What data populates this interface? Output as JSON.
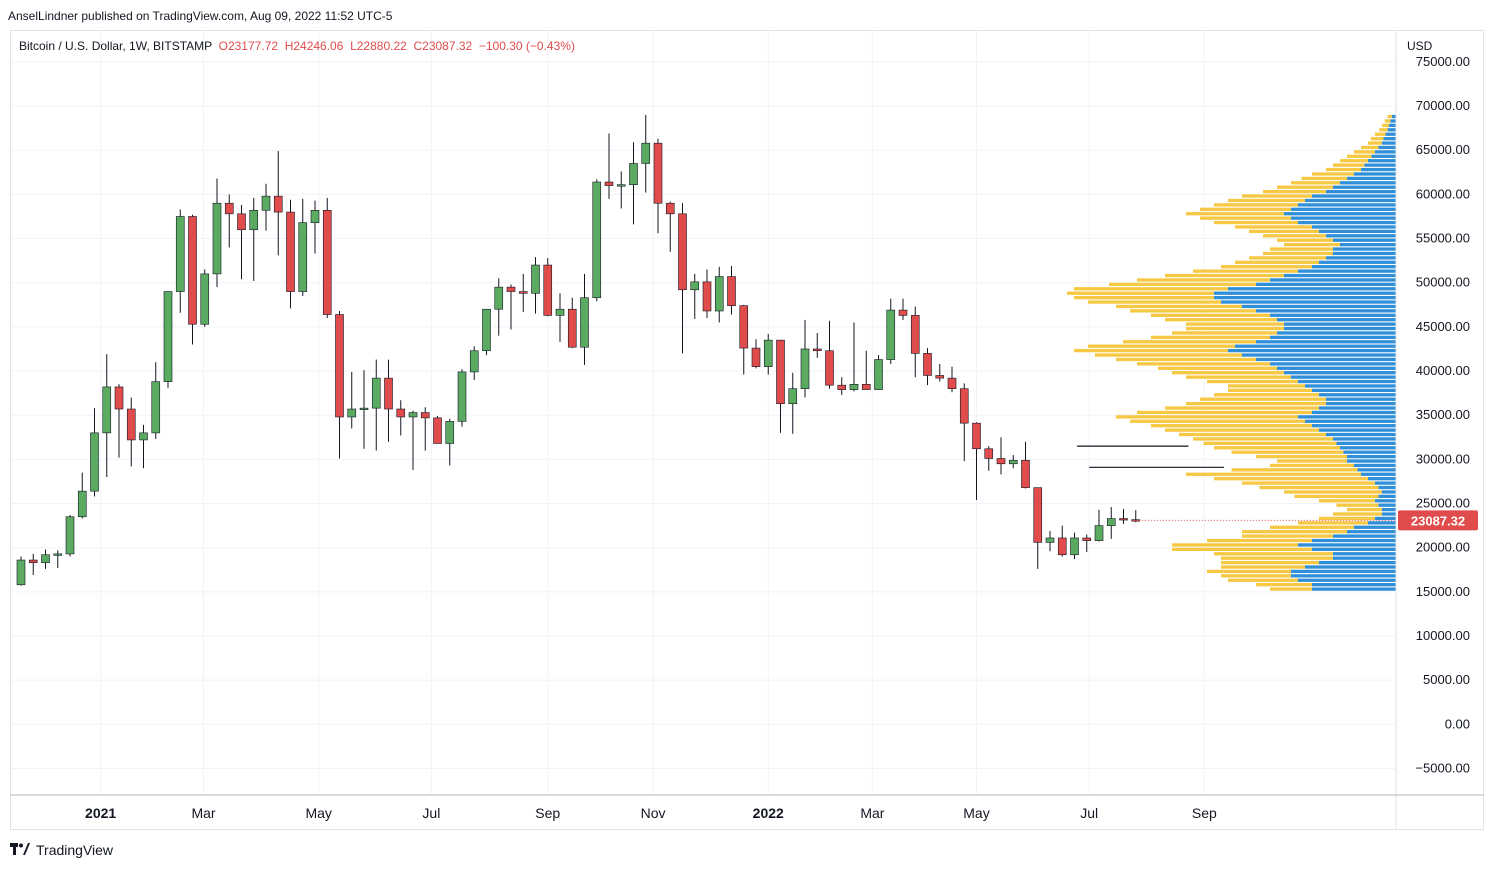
{
  "header": {
    "publisher_line": "AnselLindner published on TradingView.com, Aug 09, 2022 11:52 UTC-5"
  },
  "footer": {
    "brand": "TradingView",
    "logo_icon": "tradingview-logo-icon"
  },
  "chart_data": {
    "type": "candlestick",
    "legend": {
      "symbol": "Bitcoin / U.S. Dollar, 1W, BITSTAMP",
      "open": "O23177.72",
      "high": "H24246.06",
      "low": "L22880.22",
      "close": "C23087.32",
      "change": "−100.30 (−0.43%)"
    },
    "currency_label": "USD",
    "last_price_label": "23087.32",
    "y_ticks": [
      "75000.00",
      "70000.00",
      "65000.00",
      "60000.00",
      "55000.00",
      "50000.00",
      "45000.00",
      "40000.00",
      "35000.00",
      "30000.00",
      "25000.00",
      "20000.00",
      "15000.00",
      "10000.00",
      "5000.00",
      "0.00",
      "−5000.00"
    ],
    "y_tick_values": [
      75000,
      70000,
      65000,
      60000,
      55000,
      50000,
      45000,
      40000,
      35000,
      30000,
      25000,
      20000,
      15000,
      10000,
      5000,
      0,
      -5000
    ],
    "ylim": [
      -8000,
      78500
    ],
    "x_ticks": [
      {
        "label": "2021",
        "bar": 6.5,
        "bold": true
      },
      {
        "label": "Mar",
        "bar": 14.9
      },
      {
        "label": "May",
        "bar": 24.3
      },
      {
        "label": "Jul",
        "bar": 33.5
      },
      {
        "label": "Sep",
        "bar": 43.0
      },
      {
        "label": "Nov",
        "bar": 51.6
      },
      {
        "label": "2022",
        "bar": 61.0,
        "bold": true
      },
      {
        "label": "Mar",
        "bar": 69.5
      },
      {
        "label": "May",
        "bar": 78.0
      },
      {
        "label": "Jul",
        "bar": 87.2
      },
      {
        "label": "Sep",
        "bar": 96.6
      }
    ],
    "colors": {
      "up": "#5aab61",
      "down": "#e04c4c",
      "volume_up": "#2f8fd8",
      "volume_down": "#f7c843",
      "label_bg": "#e04c4c"
    },
    "candles": [
      [
        15800,
        19000,
        15700,
        18600
      ],
      [
        18600,
        19300,
        16900,
        18300
      ],
      [
        18300,
        19800,
        17600,
        19200
      ],
      [
        19200,
        19700,
        17700,
        19300
      ],
      [
        19300,
        23700,
        19000,
        23500
      ],
      [
        23500,
        28500,
        23300,
        26400
      ],
      [
        26400,
        35800,
        25800,
        33000
      ],
      [
        33000,
        41900,
        28000,
        38200
      ],
      [
        38200,
        38500,
        30200,
        35700
      ],
      [
        35700,
        37000,
        29200,
        32200
      ],
      [
        32200,
        33900,
        29000,
        33000
      ],
      [
        33000,
        41000,
        32300,
        38800
      ],
      [
        38800,
        48600,
        38100,
        49000
      ],
      [
        49000,
        58300,
        46600,
        57500
      ],
      [
        57500,
        57700,
        43000,
        45300
      ],
      [
        45300,
        51500,
        45000,
        51000
      ],
      [
        51000,
        61800,
        49500,
        59000
      ],
      [
        59000,
        60000,
        54000,
        57800
      ],
      [
        57800,
        58800,
        50400,
        56000
      ],
      [
        56000,
        59600,
        50200,
        58200
      ],
      [
        58200,
        61200,
        55900,
        59800
      ],
      [
        59800,
        64900,
        53100,
        58000
      ],
      [
        58000,
        59400,
        47100,
        49000
      ],
      [
        49000,
        59500,
        48500,
        56800
      ],
      [
        56800,
        59300,
        53300,
        58200
      ],
      [
        58200,
        59600,
        46000,
        46400
      ],
      [
        46400,
        46800,
        30100,
        34800
      ],
      [
        34800,
        39900,
        33500,
        35700
      ],
      [
        35700,
        40100,
        31200,
        35800
      ],
      [
        35800,
        41300,
        31000,
        39200
      ],
      [
        39200,
        41300,
        32000,
        35700
      ],
      [
        35700,
        36700,
        32700,
        34800
      ],
      [
        34800,
        35500,
        28800,
        35300
      ],
      [
        35300,
        35900,
        31000,
        34700
      ],
      [
        34700,
        34900,
        31900,
        31800
      ],
      [
        31800,
        34600,
        29300,
        34300
      ],
      [
        34300,
        40200,
        33700,
        39900
      ],
      [
        39900,
        42800,
        39000,
        42300
      ],
      [
        42300,
        46800,
        41800,
        47000
      ],
      [
        47000,
        50500,
        44000,
        49500
      ],
      [
        49500,
        49800,
        44700,
        49000
      ],
      [
        49000,
        51000,
        46700,
        48800
      ],
      [
        48800,
        52900,
        46500,
        52000
      ],
      [
        52000,
        52800,
        46200,
        46300
      ],
      [
        46300,
        48800,
        43300,
        47000
      ],
      [
        47000,
        48300,
        42600,
        42700
      ],
      [
        42700,
        51000,
        40700,
        48300
      ],
      [
        48300,
        61700,
        47900,
        61400
      ],
      [
        61400,
        66900,
        59500,
        61000
      ],
      [
        61000,
        62600,
        58400,
        61100
      ],
      [
        61100,
        65900,
        56600,
        63500
      ],
      [
        63500,
        69000,
        60200,
        65800
      ],
      [
        65800,
        66300,
        55600,
        59000
      ],
      [
        59000,
        59200,
        53500,
        57800
      ],
      [
        57800,
        59000,
        42000,
        49200
      ],
      [
        49200,
        51000,
        45900,
        50100
      ],
      [
        50100,
        51500,
        46000,
        46800
      ],
      [
        46800,
        51800,
        45500,
        50700
      ],
      [
        50700,
        51900,
        46400,
        47400
      ],
      [
        47400,
        47500,
        39600,
        42600
      ],
      [
        42600,
        43600,
        40300,
        40500
      ],
      [
        40500,
        44200,
        39600,
        43500
      ],
      [
        43500,
        43400,
        33000,
        36300
      ],
      [
        36300,
        39800,
        32900,
        38000
      ],
      [
        38000,
        45800,
        37000,
        42500
      ],
      [
        42500,
        44300,
        41500,
        42300
      ],
      [
        42300,
        45700,
        38000,
        38400
      ],
      [
        38400,
        39300,
        37300,
        37900
      ],
      [
        37900,
        45500,
        37700,
        38500
      ],
      [
        38500,
        42300,
        38100,
        37900
      ],
      [
        37900,
        41800,
        37900,
        41300
      ],
      [
        41300,
        48200,
        40800,
        46900
      ],
      [
        46900,
        48200,
        45800,
        46300
      ],
      [
        46300,
        47300,
        39300,
        42000
      ],
      [
        42000,
        42600,
        38400,
        39500
      ],
      [
        39500,
        40800,
        38800,
        39200
      ],
      [
        39200,
        40500,
        37600,
        38000
      ],
      [
        38000,
        38600,
        29800,
        34100
      ],
      [
        34100,
        34200,
        25400,
        31200
      ],
      [
        31200,
        31500,
        28700,
        30100
      ],
      [
        30100,
        32500,
        28300,
        29500
      ],
      [
        29500,
        30500,
        29000,
        29900
      ],
      [
        29900,
        32000,
        26700,
        26800
      ],
      [
        26800,
        26700,
        17600,
        20600
      ],
      [
        20600,
        21900,
        19600,
        21100
      ],
      [
        21100,
        22500,
        19000,
        19200
      ],
      [
        19200,
        21700,
        18700,
        21100
      ],
      [
        21100,
        21500,
        19500,
        20800
      ],
      [
        20800,
        24300,
        20700,
        22500
      ],
      [
        22500,
        24600,
        21000,
        23300
      ],
      [
        23300,
        24400,
        22700,
        23200
      ],
      [
        23177.72,
        24246.06,
        22880.22,
        23087.32
      ]
    ],
    "volume_profile": {
      "price_low": 15000,
      "price_high": 69000,
      "bins": 108,
      "up_levels": [
        0.12,
        0.12,
        0.14,
        0.15,
        0.15,
        0.13,
        0.11,
        0.09,
        0.09,
        0.12,
        0.14,
        0.12,
        0.09,
        0.07,
        0.06,
        0.04,
        0.03,
        0.02,
        0.02,
        0.025,
        0.03,
        0.025,
        0.02,
        0.025,
        0.03,
        0.04,
        0.05,
        0.055,
        0.06,
        0.07,
        0.07,
        0.075,
        0.08,
        0.085,
        0.09,
        0.1,
        0.11,
        0.12,
        0.13,
        0.14,
        0.12,
        0.11,
        0.1,
        0.1,
        0.11,
        0.12,
        0.13,
        0.14,
        0.15,
        0.16,
        0.17,
        0.18,
        0.2,
        0.22,
        0.24,
        0.23,
        0.2,
        0.18,
        0.17,
        0.16,
        0.16,
        0.17,
        0.18,
        0.2,
        0.22,
        0.25,
        0.26,
        0.26,
        0.24,
        0.2,
        0.18,
        0.16,
        0.14,
        0.12,
        0.11,
        0.1,
        0.09,
        0.09,
        0.08,
        0.09,
        0.1,
        0.11,
        0.12,
        0.14,
        0.15,
        0.16,
        0.15,
        0.14,
        0.13,
        0.12,
        0.1,
        0.09,
        0.08,
        0.07,
        0.06,
        0.05,
        0.045,
        0.04,
        0.035,
        0.03,
        0.025,
        0.02,
        0.018,
        0.015,
        0.012,
        0.01,
        0.008,
        0.006
      ],
      "down_levels": [
        0.06,
        0.08,
        0.1,
        0.1,
        0.12,
        0.12,
        0.14,
        0.16,
        0.17,
        0.2,
        0.18,
        0.15,
        0.13,
        0.15,
        0.12,
        0.1,
        0.08,
        0.07,
        0.05,
        0.06,
        0.08,
        0.12,
        0.14,
        0.17,
        0.19,
        0.22,
        0.25,
        0.18,
        0.12,
        0.1,
        0.13,
        0.16,
        0.18,
        0.19,
        0.2,
        0.21,
        0.22,
        0.23,
        0.25,
        0.26,
        0.25,
        0.22,
        0.2,
        0.18,
        0.15,
        0.12,
        0.11,
        0.13,
        0.15,
        0.16,
        0.17,
        0.19,
        0.2,
        0.21,
        0.22,
        0.21,
        0.19,
        0.17,
        0.15,
        0.14,
        0.14,
        0.16,
        0.17,
        0.18,
        0.18,
        0.19,
        0.2,
        0.21,
        0.22,
        0.21,
        0.19,
        0.17,
        0.15,
        0.13,
        0.12,
        0.11,
        0.1,
        0.09,
        0.08,
        0.08,
        0.09,
        0.1,
        0.11,
        0.12,
        0.13,
        0.14,
        0.13,
        0.12,
        0.11,
        0.1,
        0.09,
        0.08,
        0.07,
        0.065,
        0.06,
        0.05,
        0.045,
        0.04,
        0.035,
        0.03,
        0.025,
        0.02,
        0.018,
        0.015,
        0.012,
        0.01,
        0.008,
        0.006
      ]
    },
    "hvn_lines": [
      {
        "price": 31500,
        "from_bar": 86.2,
        "to_bar": 95.3
      },
      {
        "price": 29100,
        "from_bar": 87.2,
        "to_bar": 98.2
      }
    ]
  }
}
